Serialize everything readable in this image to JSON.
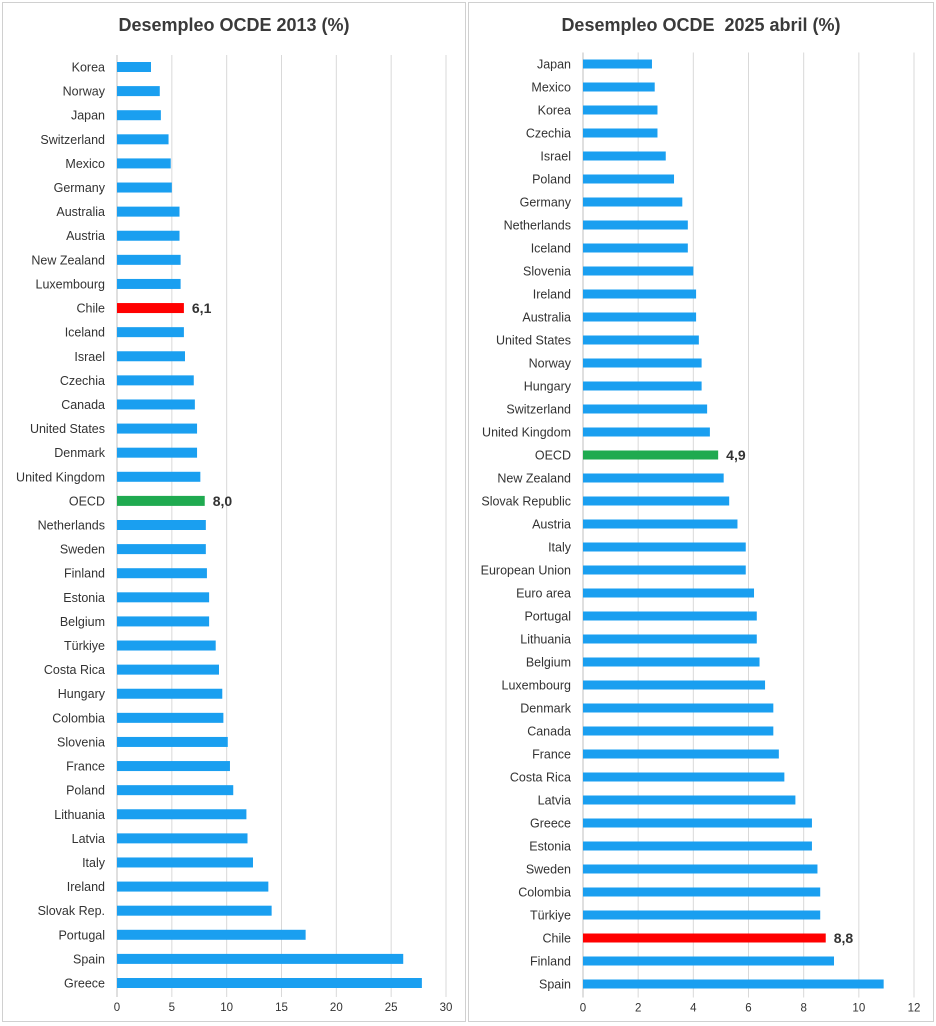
{
  "colors": {
    "bar": "#1a9ff0",
    "chile": "#ff0000",
    "oecd": "#1faa50",
    "grid": "#d9d9d9"
  },
  "chart_data": [
    {
      "type": "bar",
      "orientation": "horizontal",
      "title": "Desempleo OCDE 2013 (%)",
      "categories": [
        "Korea",
        "Norway",
        "Japan",
        "Switzerland",
        "Mexico",
        "Germany",
        "Australia",
        "Austria",
        "New Zealand",
        "Luxembourg",
        "Chile",
        "Iceland",
        "Israel",
        "Czechia",
        "Canada",
        "United States",
        "Denmark",
        "United Kingdom",
        "OECD",
        "Netherlands",
        "Sweden",
        "Finland",
        "Estonia",
        "Belgium",
        "Türkiye",
        "Costa Rica",
        "Hungary",
        "Colombia",
        "Slovenia",
        "France",
        "Poland",
        "Lithuania",
        "Latvia",
        "Italy",
        "Ireland",
        "Slovak Rep.",
        "Portugal",
        "Spain",
        "Greece"
      ],
      "values": [
        3.1,
        3.9,
        4.0,
        4.7,
        4.9,
        5.0,
        5.7,
        5.7,
        5.8,
        5.8,
        6.1,
        6.1,
        6.2,
        7.0,
        7.1,
        7.3,
        7.3,
        7.6,
        8.0,
        8.1,
        8.1,
        8.2,
        8.4,
        8.4,
        9.0,
        9.3,
        9.6,
        9.7,
        10.1,
        10.3,
        10.6,
        11.8,
        11.9,
        12.4,
        13.8,
        14.1,
        17.2,
        26.1,
        27.8
      ],
      "highlights": {
        "Chile": "chile",
        "OECD": "oecd"
      },
      "data_labels": {
        "Chile": "6,1",
        "OECD": "8,0"
      },
      "xlim": [
        0,
        30
      ],
      "xticks": [
        "0",
        "5",
        "10",
        "15",
        "20",
        "25",
        "30"
      ],
      "grid": true
    },
    {
      "type": "bar",
      "orientation": "horizontal",
      "title": "Desempleo OCDE  2025 abril (%)",
      "categories": [
        "Japan",
        "Mexico",
        "Korea",
        "Czechia",
        "Israel",
        "Poland",
        "Germany",
        "Netherlands",
        "Iceland",
        "Slovenia",
        "Ireland",
        "Australia",
        "United States",
        "Norway",
        "Hungary",
        "Switzerland",
        "United Kingdom",
        "OECD",
        "New Zealand",
        "Slovak Republic",
        "Austria",
        "Italy",
        "European Union",
        "Euro area",
        "Portugal",
        "Lithuania",
        "Belgium",
        "Luxembourg",
        "Denmark",
        "Canada",
        "France",
        "Costa Rica",
        "Latvia",
        "Greece",
        "Estonia",
        "Sweden",
        "Colombia",
        "Türkiye",
        "Chile",
        "Finland",
        "Spain"
      ],
      "values": [
        2.5,
        2.6,
        2.7,
        2.7,
        3.0,
        3.3,
        3.6,
        3.8,
        3.8,
        4.0,
        4.1,
        4.1,
        4.2,
        4.3,
        4.3,
        4.5,
        4.6,
        4.9,
        5.1,
        5.3,
        5.6,
        5.9,
        5.9,
        6.2,
        6.3,
        6.3,
        6.4,
        6.6,
        6.9,
        6.9,
        7.1,
        7.3,
        7.7,
        8.3,
        8.3,
        8.5,
        8.6,
        8.6,
        8.8,
        9.1,
        10.9
      ],
      "highlights": {
        "Chile": "chile",
        "OECD": "oecd"
      },
      "data_labels": {
        "Chile": "8,8",
        "OECD": "4,9"
      },
      "xlim": [
        0,
        12
      ],
      "xticks": [
        "0",
        "2",
        "4",
        "6",
        "8",
        "10",
        "12"
      ],
      "grid": true
    }
  ]
}
